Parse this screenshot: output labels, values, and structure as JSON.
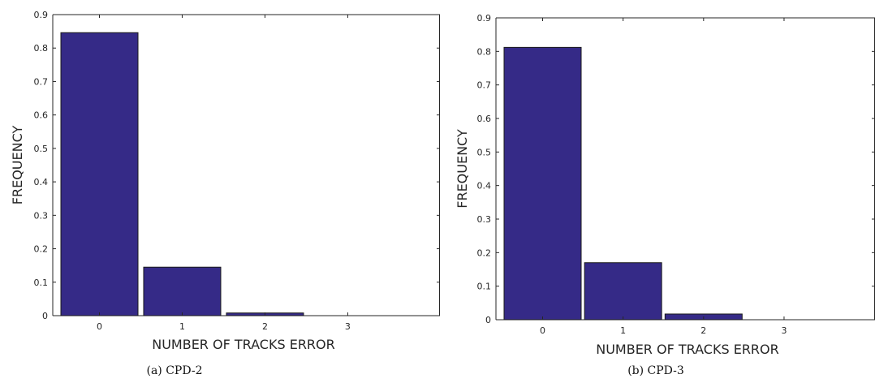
{
  "colors": {
    "bar": "#352a87",
    "bar_edge": "#1a1a1a",
    "axis": "#262626",
    "background": "#ffffff"
  },
  "chart_data": [
    {
      "type": "bar",
      "caption": "(a) CPD-2",
      "categories": [
        "0",
        "1",
        "2",
        "3"
      ],
      "values": [
        0.846,
        0.145,
        0.008,
        0.0
      ],
      "xlabel": "NUMBER OF TRACKS ERROR",
      "ylabel": "FREQUENCY",
      "ylim": [
        0,
        0.9
      ],
      "yticks": [
        "0",
        "0.1",
        "0.2",
        "0.3",
        "0.4",
        "0.5",
        "0.6",
        "0.7",
        "0.8",
        "0.9"
      ],
      "grid": false,
      "legend": "none"
    },
    {
      "type": "bar",
      "caption": "(b) CPD-3",
      "categories": [
        "0",
        "1",
        "2",
        "3"
      ],
      "values": [
        0.812,
        0.17,
        0.017,
        0.0
      ],
      "xlabel": "NUMBER OF TRACKS ERROR",
      "ylabel": "FREQUENCY",
      "ylim": [
        0,
        0.9
      ],
      "yticks": [
        "0",
        "0.1",
        "0.2",
        "0.3",
        "0.4",
        "0.5",
        "0.6",
        "0.7",
        "0.8",
        "0.9"
      ],
      "grid": false,
      "legend": "none"
    }
  ]
}
